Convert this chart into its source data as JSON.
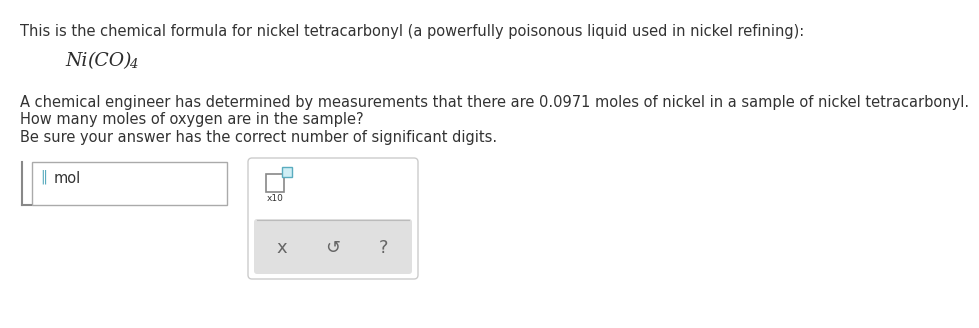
{
  "background_color": "#ffffff",
  "line1": "This is the chemical formula for nickel tetracarbonyl (a powerfully poisonous liquid used in nickel refining):",
  "formula_Ni": "Ni",
  "formula_CO": "(CO)",
  "formula_sub4": "4",
  "line3": "A chemical engineer has determined by measurements that there are 0.0971 moles of nickel in a sample of nickel tetracarbonyl.",
  "line4": "How many moles of oxygen are in the sample?",
  "line5": "Be sure your answer has the correct number of significant digits.",
  "input_label": "mol",
  "text_color": "#333333",
  "formula_color": "#2c2c2c",
  "input_box_border": "#aaaaaa",
  "panel_bg": "#ffffff",
  "panel_border": "#cccccc",
  "button_area_bg": "#e0e0e0",
  "teal_color": "#5aacbf",
  "x_button": "x",
  "undo_button": "↺",
  "help_button": "?",
  "font_size_main": 10.5,
  "font_size_formula": 13.5,
  "font_size_buttons": 13
}
